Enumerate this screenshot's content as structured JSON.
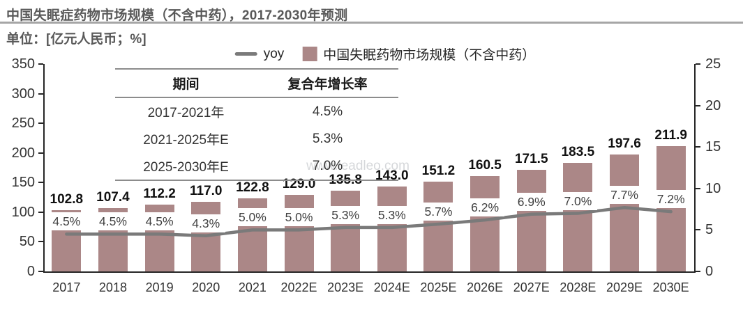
{
  "header": {
    "title": "中国失眠症药物市场规模（不含中药），2017-2030年预测",
    "unit_label": "单位：[亿元人民币；%]"
  },
  "legend": {
    "items": [
      {
        "label": "yoy",
        "swatch": "line",
        "color": "#7a7a7a"
      },
      {
        "label": "中国失眠药物市场规模（不含中药）",
        "swatch": "square",
        "color": "#ab8787"
      }
    ]
  },
  "cagr_table": {
    "headers": [
      "期间",
      "复合年增长率"
    ],
    "rows": [
      [
        "2017-2021年",
        "4.5%"
      ],
      [
        "2021-2025年E",
        "5.3%"
      ],
      [
        "2025-2030年E",
        "7.0%"
      ]
    ]
  },
  "watermark": {
    "text": "www.leadleo.com"
  },
  "chart_data": {
    "type": "bar",
    "title": "中国失眠症药物市场规模（不含中药），2017-2030年预测",
    "unit": "亿元人民币；%",
    "categories": [
      "2017",
      "2018",
      "2019",
      "2020",
      "2021",
      "2022E",
      "2023E",
      "2024E",
      "2025E",
      "2026E",
      "2027E",
      "2028E",
      "2029E",
      "2030E"
    ],
    "series": [
      {
        "name": "中国失眠药物市场规模（不含中药）",
        "type": "bar",
        "axis": "left",
        "color": "#ab8787",
        "values": [
          102.8,
          107.4,
          112.2,
          117.0,
          122.8,
          129.0,
          135.8,
          143.0,
          151.2,
          160.5,
          171.5,
          183.5,
          197.6,
          211.9
        ]
      },
      {
        "name": "yoy",
        "type": "line",
        "axis": "right",
        "color": "#7a7a7a",
        "unit": "%",
        "values": [
          4.5,
          4.5,
          4.5,
          4.3,
          5.0,
          5.0,
          5.3,
          5.3,
          5.7,
          6.2,
          6.9,
          7.0,
          7.7,
          7.2
        ]
      }
    ],
    "left_axis": {
      "min": 0,
      "max": 350,
      "ticks": [
        0,
        50,
        100,
        150,
        200,
        250,
        300,
        350
      ]
    },
    "right_axis": {
      "min": 0,
      "max": 25,
      "ticks": [
        0,
        5,
        10,
        15,
        20,
        25
      ]
    },
    "grid": false,
    "legend_position": "top-center"
  }
}
